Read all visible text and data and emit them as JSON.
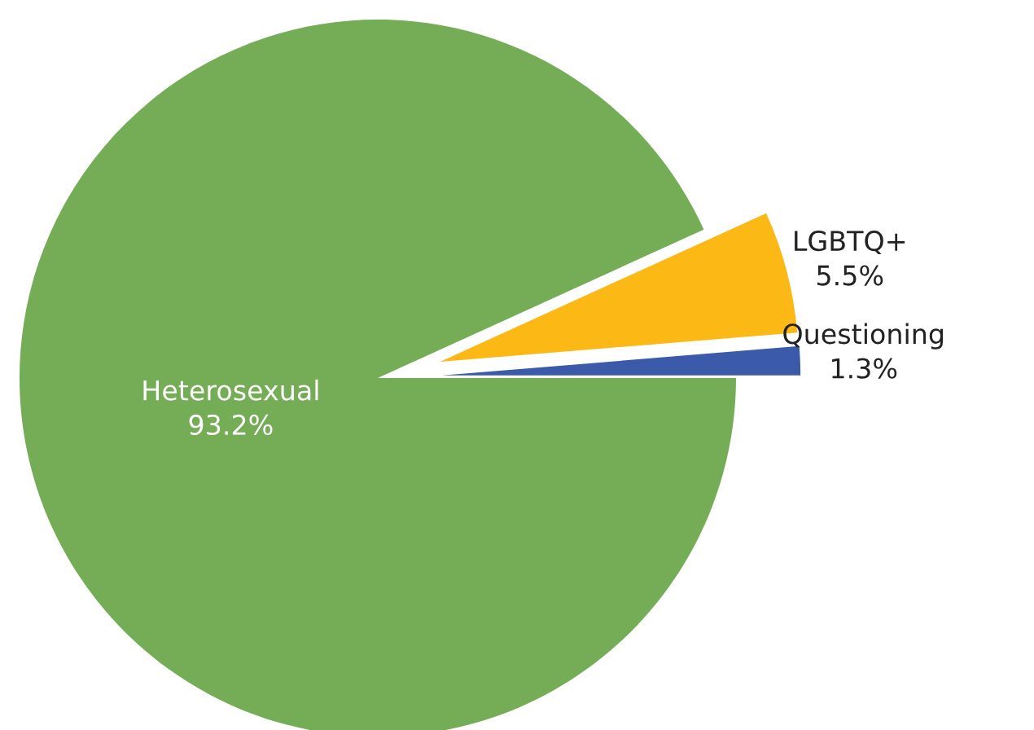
{
  "chart_data": {
    "type": "pie",
    "categories": [
      "Heterosexual",
      "LGBTQ+",
      "Questioning"
    ],
    "values": [
      93.2,
      5.5,
      1.3
    ],
    "value_labels": [
      "93.2%",
      "5.5%",
      "1.3%"
    ],
    "colors": [
      "#75ac56",
      "#fcb814",
      "#3b5aa9"
    ]
  }
}
